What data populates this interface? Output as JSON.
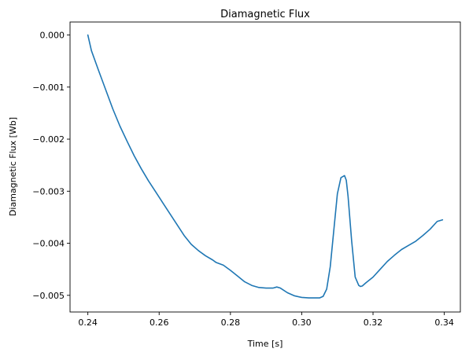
{
  "chart_data": {
    "type": "line",
    "title": "Diamagnetic Flux",
    "xlabel": "Time [s]",
    "ylabel": "Diamagnetic Flux [Wb]",
    "xlim": [
      0.235,
      0.3445
    ],
    "ylim": [
      -0.00532,
      0.00025
    ],
    "xticks": [
      0.24,
      0.26,
      0.28,
      0.3,
      0.32,
      0.34
    ],
    "xtick_labels": [
      "0.24",
      "0.26",
      "0.28",
      "0.30",
      "0.32",
      "0.34"
    ],
    "yticks": [
      0.0,
      -0.001,
      -0.002,
      -0.003,
      -0.004,
      -0.005
    ],
    "ytick_labels": [
      "0.000",
      "−0.001",
      "−0.002",
      "−0.003",
      "−0.004",
      "−0.005"
    ],
    "grid": false,
    "series": [
      {
        "color": "#1f77b4",
        "x": [
          0.24,
          0.241,
          0.243,
          0.245,
          0.247,
          0.249,
          0.251,
          0.253,
          0.255,
          0.257,
          0.259,
          0.261,
          0.263,
          0.265,
          0.267,
          0.269,
          0.271,
          0.273,
          0.275,
          0.276,
          0.278,
          0.28,
          0.282,
          0.284,
          0.286,
          0.288,
          0.29,
          0.292,
          0.293,
          0.294,
          0.296,
          0.298,
          0.3,
          0.302,
          0.304,
          0.305,
          0.306,
          0.307,
          0.308,
          0.309,
          0.31,
          0.311,
          0.312,
          0.3125,
          0.313,
          0.314,
          0.315,
          0.316,
          0.3165,
          0.317,
          0.318,
          0.32,
          0.322,
          0.324,
          0.326,
          0.328,
          0.33,
          0.332,
          0.334,
          0.336,
          0.338,
          0.3395
        ],
        "y": [
          0.0,
          -0.0003,
          -0.00068,
          -0.00105,
          -0.00142,
          -0.00175,
          -0.00204,
          -0.00232,
          -0.00257,
          -0.0028,
          -0.00301,
          -0.00322,
          -0.00343,
          -0.00364,
          -0.00385,
          -0.00402,
          -0.00414,
          -0.00424,
          -0.00432,
          -0.00437,
          -0.00442,
          -0.00452,
          -0.00463,
          -0.00474,
          -0.00481,
          -0.00485,
          -0.00486,
          -0.00486,
          -0.00484,
          -0.00486,
          -0.00495,
          -0.00501,
          -0.00504,
          -0.00505,
          -0.00505,
          -0.00505,
          -0.00502,
          -0.00488,
          -0.00445,
          -0.00375,
          -0.00305,
          -0.00274,
          -0.0027,
          -0.00279,
          -0.0031,
          -0.00395,
          -0.00465,
          -0.00481,
          -0.00483,
          -0.00482,
          -0.00476,
          -0.00465,
          -0.0045,
          -0.00435,
          -0.00423,
          -0.00412,
          -0.00404,
          -0.00396,
          -0.00385,
          -0.00373,
          -0.00358,
          -0.00355
        ]
      }
    ]
  }
}
